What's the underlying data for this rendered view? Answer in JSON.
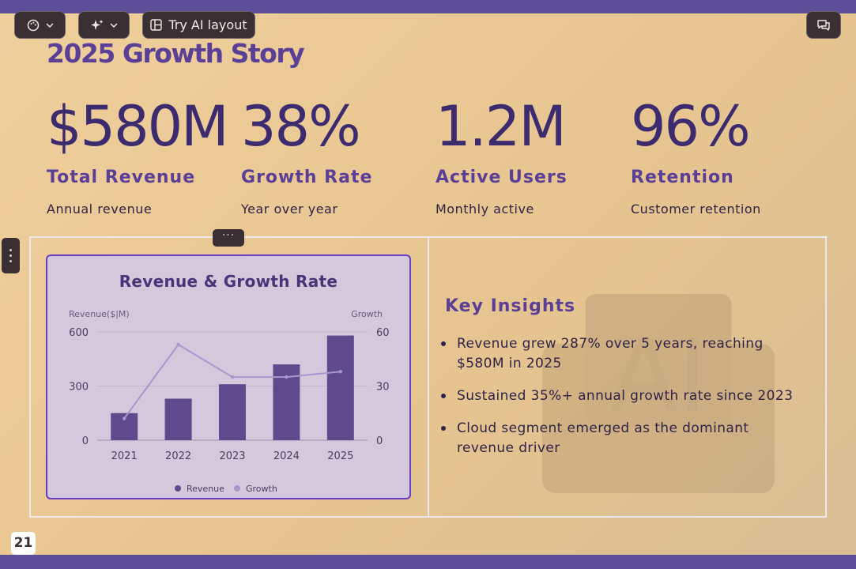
{
  "toolbar": {
    "theme_icon": "palette-icon",
    "ai_icon": "sparkle-icon",
    "layout_icon": "layout-icon",
    "try_ai_layout_label": "Try AI layout",
    "comment_icon": "comment-icon"
  },
  "slide": {
    "title": "2025 Growth Story",
    "page_number": "21",
    "handle_dots": "···"
  },
  "stats": [
    {
      "value": "$580M",
      "label": "Total Revenue",
      "sub": "Annual revenue"
    },
    {
      "value": "38%",
      "label": "Growth Rate",
      "sub": "Year over year"
    },
    {
      "value": "1.2M",
      "label": "Active Users",
      "sub": "Monthly active"
    },
    {
      "value": "96%",
      "label": "Retention",
      "sub": "Customer retention"
    }
  ],
  "insights": {
    "title": "Key Insights",
    "items": [
      "Revenue grew 287% over 5 years, reaching $580M in 2025",
      "Sustained 35%+ annual growth rate since 2023",
      "Cloud segment emerged as the dominant revenue driver"
    ]
  },
  "colors": {
    "accent": "#5b3f97",
    "bar": "#5e4a8d",
    "line": "#a897cc",
    "card_border": "#6a3dc6"
  },
  "chart_data": {
    "type": "bar",
    "title": "Revenue & Growth Rate",
    "categories": [
      "2021",
      "2022",
      "2023",
      "2024",
      "2025"
    ],
    "ylabel": "Revenue($|M)",
    "y2label": "Growth",
    "ylim": [
      0,
      600
    ],
    "y2lim": [
      0,
      60
    ],
    "yticks": [
      "0",
      "300",
      "600"
    ],
    "y2ticks": [
      "0",
      "30",
      "60"
    ],
    "series": [
      {
        "name": "Revenue",
        "type": "bar",
        "axis": "left",
        "values": [
          150,
          230,
          310,
          420,
          580
        ]
      },
      {
        "name": "Growth",
        "type": "line",
        "axis": "right",
        "values": [
          12,
          53,
          35,
          35,
          38
        ]
      }
    ],
    "legend": "bottom",
    "grid": true
  }
}
